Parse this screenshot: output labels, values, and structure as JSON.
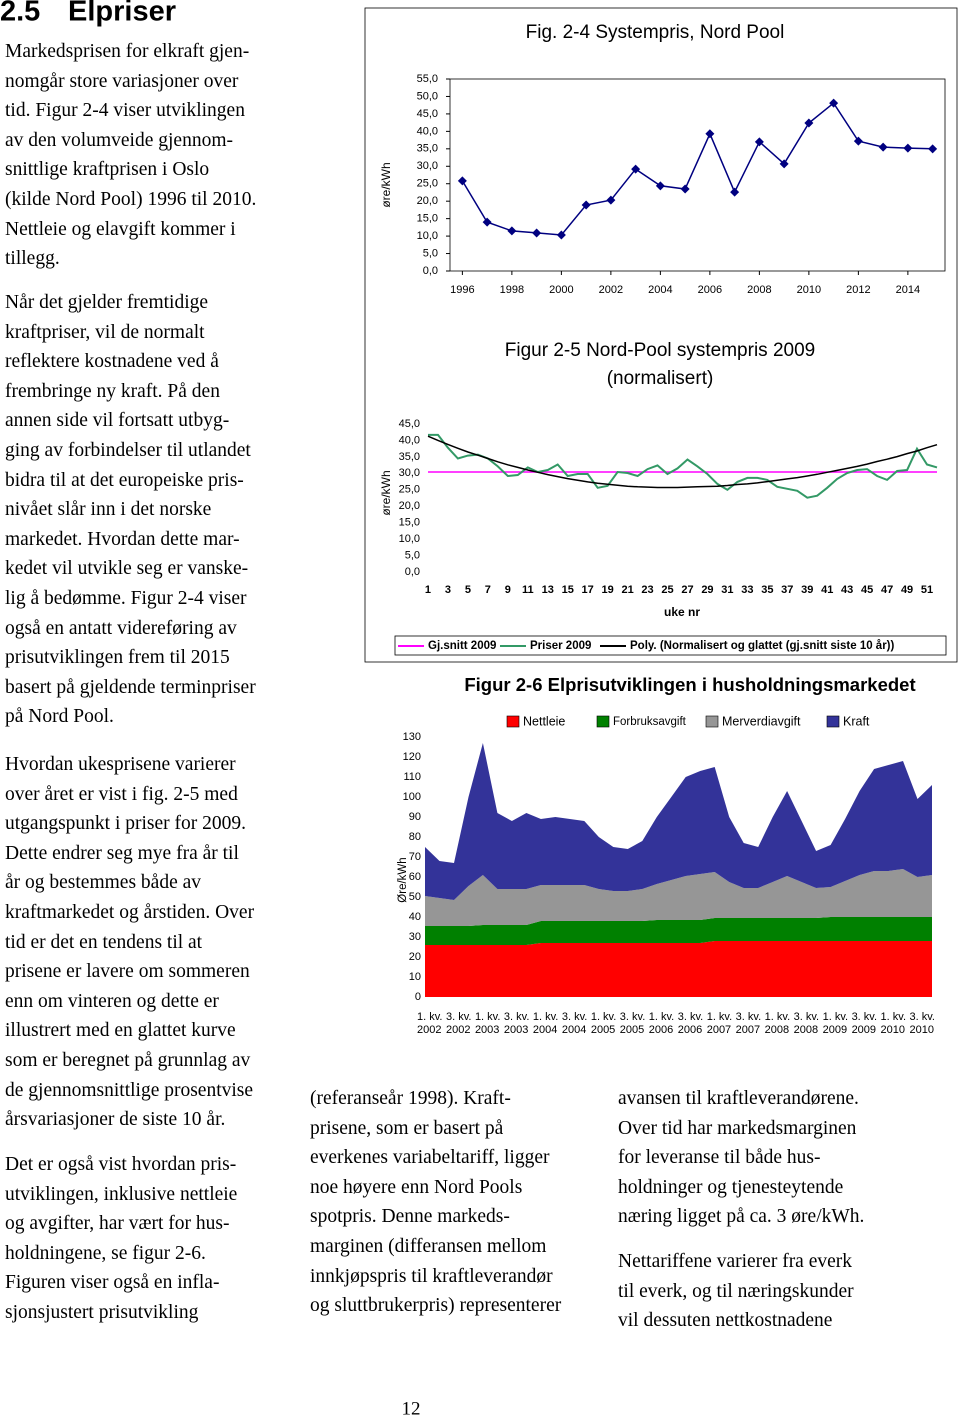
{
  "heading": {
    "number": "2.5",
    "title": "Elpriser"
  },
  "left_column": [
    [
      "Markedsprisen for elkraft gjen-",
      "nomgår store variasjoner over",
      "tid. Figur 2-4 viser utviklingen",
      "av den volumveide gjennom-",
      "snittlige kraftprisen i Oslo",
      "(kilde Nord Pool) 1996 til 2010.",
      "Nettleie og elavgift kommer i",
      "tillegg."
    ],
    [
      "Når det gjelder fremtidige",
      "kraftpriser, vil de normalt",
      "reflektere kostnadene ved å",
      "frembringe ny kraft. På den",
      "annen side vil fortsatt utbyg-",
      "ging av forbindelser til utlandet",
      "bidra til at det europeiske pris-",
      "nivået slår inn i det norske",
      "markedet. Hvordan dette mar-",
      "kedet vil utvikle seg er vanske-",
      "lig å bedømme. Figur 2-4 viser",
      "også en antatt videreføring av",
      "prisutviklingen frem til 2015",
      "basert på gjeldende terminpriser",
      "på Nord Pool."
    ],
    [
      "Hvordan ukesprisene varierer",
      "over året er vist i fig. 2-5 med",
      "utgangspunkt i priser for 2009.",
      "Dette endrer seg mye fra år til",
      "år og bestemmes både av",
      "kraftmarkedet og årstiden. Over",
      "tid er det en tendens til at",
      "prisene er lavere om sommeren",
      "enn om vinteren og dette er",
      "illustrert med en glattet kurve",
      "som er beregnet på grunnlag av",
      "de gjennomsnittlige prosentvise",
      "årsvariasjoner de siste 10 år."
    ],
    [
      "Det er også vist hvordan pris-",
      "utviklingen, inklusive nettleie",
      "og avgifter, har vært for hus-",
      "holdningene, se figur 2-6.",
      "Figuren viser også en infla-",
      "sjonsjustert prisutvikling"
    ]
  ],
  "middle_column": [
    [
      "(referanseår 1998). Kraft-",
      "prisene, som er basert på",
      "everkenes variabeltariff, ligger",
      "noe høyere enn Nord Pools",
      "spotpris. Denne markeds-",
      "marginen (differansen mellom",
      "innkjøpspris til kraftleverandør",
      "og sluttbrukerpris) representerer"
    ]
  ],
  "right_column": [
    [
      "avansen til kraftleverandørene.",
      "Over tid har markedsmarginen",
      "for leveranse til både hus-",
      "holdninger og tjenesteytende",
      "næring ligget på ca. 3 øre/kWh."
    ],
    [
      "Nettariffene varierer fra everk",
      "til everk, og til næringskunder",
      "vil dessuten nettkostnadene"
    ]
  ],
  "page_number": "12",
  "chart_data": [
    {
      "type": "line",
      "title": "Fig. 2-4 Systempris, Nord Pool",
      "y_label": "øre/kWh",
      "color": "#000080",
      "x": [
        1996,
        1997,
        1998,
        1999,
        2000,
        2001,
        2002,
        2003,
        2004,
        2005,
        2006,
        2007,
        2008,
        2009,
        2010,
        2011,
        2012,
        2013,
        2014,
        2015
      ],
      "values": [
        25.8,
        14.0,
        11.5,
        10.9,
        10.3,
        18.9,
        20.3,
        29.2,
        24.4,
        23.5,
        39.3,
        22.6,
        37.0,
        30.7,
        42.4,
        48.1,
        37.2,
        35.5,
        35.2,
        35.0
      ],
      "xlim": [
        1995.5,
        2015.5
      ],
      "xticks": [
        1996,
        1998,
        2000,
        2002,
        2004,
        2006,
        2008,
        2010,
        2012,
        2014
      ],
      "ylim": [
        0,
        55
      ],
      "yticks": [
        {
          "value": 0,
          "label": "0,0"
        },
        {
          "value": 5,
          "label": "5,0"
        },
        {
          "value": 10,
          "label": "10,0"
        },
        {
          "value": 15,
          "label": "15,0"
        },
        {
          "value": 20,
          "label": "20,0"
        },
        {
          "value": 25,
          "label": "25,0"
        },
        {
          "value": 30,
          "label": "30,0"
        },
        {
          "value": 35,
          "label": "35,0"
        },
        {
          "value": 40,
          "label": "40,0"
        },
        {
          "value": 45,
          "label": "45,0"
        },
        {
          "value": 50,
          "label": "50,0"
        },
        {
          "value": 55,
          "label": "55,0"
        }
      ]
    },
    {
      "type": "line",
      "title": [
        "Figur 2-5 Nord-Pool systempris 2009",
        "(normalisert)"
      ],
      "x_label": "uke nr",
      "y_label": "øre/kWh",
      "x": [
        1,
        2,
        3,
        4,
        5,
        6,
        7,
        8,
        9,
        10,
        11,
        12,
        13,
        14,
        15,
        16,
        17,
        18,
        19,
        20,
        21,
        22,
        23,
        24,
        25,
        26,
        27,
        28,
        29,
        30,
        31,
        32,
        33,
        34,
        35,
        36,
        37,
        38,
        39,
        40,
        41,
        42,
        43,
        44,
        45,
        46,
        47,
        48,
        49,
        50,
        51,
        52
      ],
      "series": [
        {
          "name": "Gj.snitt 2009",
          "color": "#ff00ff",
          "values": [
            30.4,
            30.4,
            30.4,
            30.4,
            30.4,
            30.4,
            30.4,
            30.4,
            30.4,
            30.4,
            30.4,
            30.4,
            30.4,
            30.4,
            30.4,
            30.4,
            30.4,
            30.4,
            30.4,
            30.4,
            30.4,
            30.4,
            30.4,
            30.4,
            30.4,
            30.4,
            30.4,
            30.4,
            30.4,
            30.4,
            30.4,
            30.4,
            30.4,
            30.4,
            30.4,
            30.4,
            30.4,
            30.4,
            30.4,
            30.4,
            30.4,
            30.4,
            30.4,
            30.4,
            30.4,
            30.4,
            30.4,
            30.4,
            30.4,
            30.4,
            30.4,
            30.4
          ]
        },
        {
          "name": "Priser 2009",
          "color": "#339966",
          "values": [
            41.7,
            41.7,
            37.8,
            34.5,
            35.4,
            35.7,
            34.5,
            32.1,
            29.2,
            29.5,
            31.8,
            30.4,
            31.0,
            32.7,
            29.2,
            29.8,
            29.8,
            25.6,
            26.2,
            30.4,
            30.1,
            29.2,
            31.3,
            32.4,
            29.8,
            31.5,
            34.2,
            32.1,
            29.8,
            26.8,
            25.0,
            27.4,
            28.6,
            28.6,
            28.0,
            25.9,
            25.3,
            24.7,
            22.6,
            23.2,
            25.6,
            28.3,
            30.1,
            31.0,
            31.3,
            29.2,
            28.0,
            30.7,
            31.0,
            37.5,
            32.7,
            31.8
          ]
        },
        {
          "name": "Poly. (Normalisert og glattet (gj.snitt siste 10 år))",
          "color": "#000000",
          "values": [
            41.3,
            40.0,
            38.8,
            37.6,
            36.5,
            35.5,
            34.5,
            33.5,
            32.6,
            31.8,
            31.0,
            30.3,
            29.6,
            29.0,
            28.4,
            27.9,
            27.4,
            27.0,
            26.7,
            26.4,
            26.1,
            25.9,
            25.8,
            25.7,
            25.7,
            25.7,
            25.8,
            25.9,
            26.0,
            26.1,
            26.3,
            26.6,
            26.8,
            27.1,
            27.5,
            27.9,
            28.3,
            28.7,
            29.2,
            29.7,
            30.3,
            30.9,
            31.5,
            32.1,
            32.8,
            33.6,
            34.3,
            35.1,
            36.0,
            36.8,
            37.8,
            38.7
          ]
        }
      ],
      "xlim": [
        0,
        52.5
      ],
      "xticks": [
        1,
        3,
        5,
        7,
        9,
        11,
        13,
        15,
        17,
        19,
        21,
        23,
        25,
        27,
        29,
        31,
        33,
        35,
        37,
        39,
        41,
        43,
        45,
        47,
        49,
        51
      ],
      "ylim": [
        0,
        45
      ],
      "yticks": [
        {
          "value": 0,
          "label": "0,0"
        },
        {
          "value": 5,
          "label": "5,0"
        },
        {
          "value": 10,
          "label": "10,0"
        },
        {
          "value": 15,
          "label": "15,0"
        },
        {
          "value": 20,
          "label": "20,0"
        },
        {
          "value": 25,
          "label": "25,0"
        },
        {
          "value": 30,
          "label": "30,0"
        },
        {
          "value": 35,
          "label": "35,0"
        },
        {
          "value": 40,
          "label": "40,0"
        },
        {
          "value": 45,
          "label": "45,0"
        }
      ]
    },
    {
      "type": "stacked_area",
      "title": "Figur 2-6 Elprisutviklingen i husholdningsmarkedet",
      "y_label": "Øre/kWh",
      "categories": [
        "1. kv. 2002",
        null,
        "3. kv. 2002",
        null,
        "1. kv. 2003",
        null,
        "3. kv. 2003",
        null,
        "1. kv. 2004",
        null,
        "3. kv. 2004",
        null,
        "1. kv. 2005",
        null,
        "3. kv. 2005",
        null,
        "1. kv. 2006",
        null,
        "3. kv. 2006",
        null,
        "1. kv. 2007",
        null,
        "3. kv. 2007",
        null,
        "1. kv. 2008",
        null,
        "3. kv. 2008",
        null,
        "1. kv. 2009",
        null,
        "3. kv. 2009",
        null,
        "1. kv. 2010",
        null,
        "3. kv. 2010",
        null
      ],
      "series": [
        {
          "name": "Nettleie",
          "color": "#ff0000",
          "values": [
            26,
            26,
            26,
            26,
            26,
            26,
            26,
            26,
            27,
            27,
            27,
            27,
            27,
            27,
            27,
            27,
            27,
            27,
            27,
            27,
            28,
            28,
            28,
            28,
            28,
            28,
            28,
            28,
            28,
            28,
            28,
            28,
            28,
            28,
            28,
            28
          ]
        },
        {
          "name": "Forbruksavgift",
          "color": "#008000",
          "values": [
            9.5,
            9.5,
            9.5,
            9.5,
            10,
            10,
            10,
            10,
            11,
            11,
            11,
            11,
            11,
            11,
            11,
            11,
            11.5,
            11.5,
            11.5,
            11.5,
            11.5,
            11.5,
            11.5,
            11.5,
            11.5,
            11.5,
            11.5,
            11.5,
            12,
            12,
            12,
            12,
            12,
            12,
            12,
            12
          ]
        },
        {
          "name": "Merverdiavgift",
          "color": "#969696",
          "values": [
            15,
            14,
            13,
            20,
            25,
            18,
            18,
            18,
            18,
            18,
            18,
            18,
            16,
            15,
            15,
            16,
            18,
            20,
            22,
            23,
            23,
            18,
            15,
            15,
            18,
            21,
            18,
            15,
            15,
            18,
            21,
            23,
            23,
            24,
            20,
            21
          ]
        },
        {
          "name": "Kraft",
          "color": "#333399",
          "values": [
            24.5,
            18.5,
            18.5,
            44.5,
            66,
            38,
            34,
            38,
            33,
            34,
            33,
            32,
            26,
            22,
            21,
            24,
            33.5,
            41.5,
            49.5,
            51.5,
            52.5,
            32.5,
            22.5,
            20.5,
            32.5,
            42.5,
            30.5,
            18.5,
            21,
            31,
            42,
            51,
            53,
            54,
            39,
            45
          ]
        }
      ],
      "ylim": [
        0,
        130
      ],
      "yticks": [
        0,
        10,
        20,
        30,
        40,
        50,
        60,
        70,
        80,
        90,
        100,
        110,
        120,
        130
      ]
    }
  ]
}
